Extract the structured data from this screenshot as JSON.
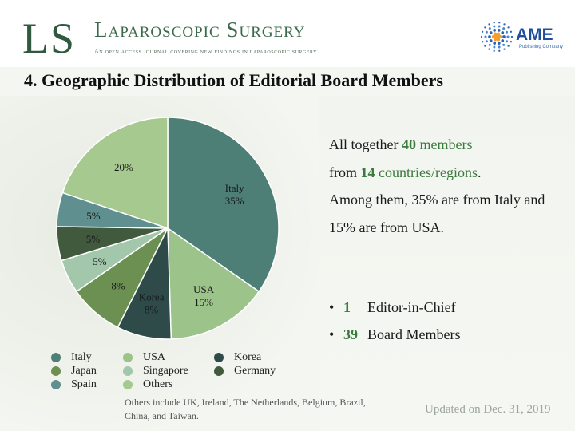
{
  "header": {
    "logo_letters": "LS",
    "journal_title": "Laparoscopic Surgery",
    "journal_subtitle": "An open access journal covering new findings in laparoscopic surgery",
    "publisher_name": "AME",
    "publisher_sub": "Publishing Company"
  },
  "section_title": "4. Geographic Distribution of Editorial Board Members",
  "summary": {
    "line1_pre": "All together ",
    "members_count": "40",
    "members_word": "members",
    "line2_pre": "from ",
    "countries_count": "14",
    "countries_word": "countries/regions",
    "line2_post": ".",
    "rest": "Among them, 35% are from Italy and 15% are from USA."
  },
  "bullets": [
    {
      "bullet": "•",
      "number": "1",
      "label": "Editor-in-Chief"
    },
    {
      "bullet": "•",
      "number": "39",
      "label": "Board Members"
    }
  ],
  "note": "Others include UK, Ireland, The Netherlands, Belgium, Brazil, China, and Taiwan.",
  "updated": "Updated on Dec. 31, 2019",
  "chart_data": {
    "type": "pie",
    "title": "",
    "slices": [
      {
        "name": "Italy",
        "value": 35,
        "label": "35%",
        "color": "#4d7f77",
        "show_name": true
      },
      {
        "name": "USA",
        "value": 15,
        "label": "15%",
        "color": "#9cc38a",
        "show_name": true
      },
      {
        "name": "Korea",
        "value": 8,
        "label": "8%",
        "color": "#2e4b4a",
        "show_name": true
      },
      {
        "name": "Japan",
        "value": 8,
        "label": "8%",
        "color": "#6b9051",
        "show_name": false
      },
      {
        "name": "Singapore",
        "value": 5,
        "label": "5%",
        "color": "#a2c7aa",
        "show_name": false
      },
      {
        "name": "Germany",
        "value": 5,
        "label": "5%",
        "color": "#415a3e",
        "show_name": false
      },
      {
        "name": "Spain",
        "value": 5,
        "label": "5%",
        "color": "#5f8f8e",
        "show_name": false
      },
      {
        "name": "Others",
        "value": 20,
        "label": "20%",
        "color": "#a5c98e",
        "show_name": false
      }
    ],
    "legend_order": [
      "Italy",
      "USA",
      "Korea",
      "Japan",
      "Singapore",
      "Germany",
      "Spain",
      "Others"
    ],
    "legend_placement": "bottom"
  }
}
